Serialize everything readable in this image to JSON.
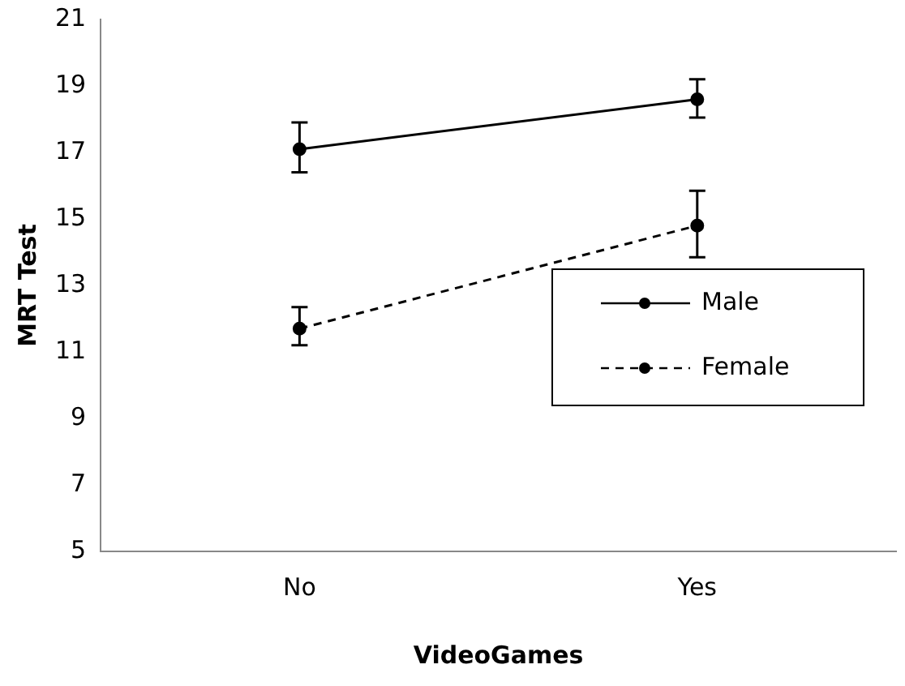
{
  "chart_data": {
    "type": "line",
    "xlabel": "VideoGames",
    "ylabel": "MRT Test",
    "categories": [
      "No",
      "Yes"
    ],
    "series": [
      {
        "name": "Male",
        "color": "#000000",
        "line_style": "solid",
        "values": [
          17.1,
          18.6
        ],
        "errors": [
          [
            16.4,
            17.9
          ],
          [
            18.05,
            19.2
          ]
        ]
      },
      {
        "name": "Female",
        "color": "#000000",
        "line_style": "dashed",
        "values": [
          11.7,
          14.8
        ],
        "errors": [
          [
            11.2,
            12.35
          ],
          [
            13.85,
            15.85
          ]
        ]
      }
    ],
    "ylim": [
      5,
      21
    ],
    "yticks": [
      5,
      7,
      9,
      11,
      13,
      15,
      17,
      19,
      21
    ],
    "grid": false,
    "legend": "right",
    "marker": "circle"
  }
}
